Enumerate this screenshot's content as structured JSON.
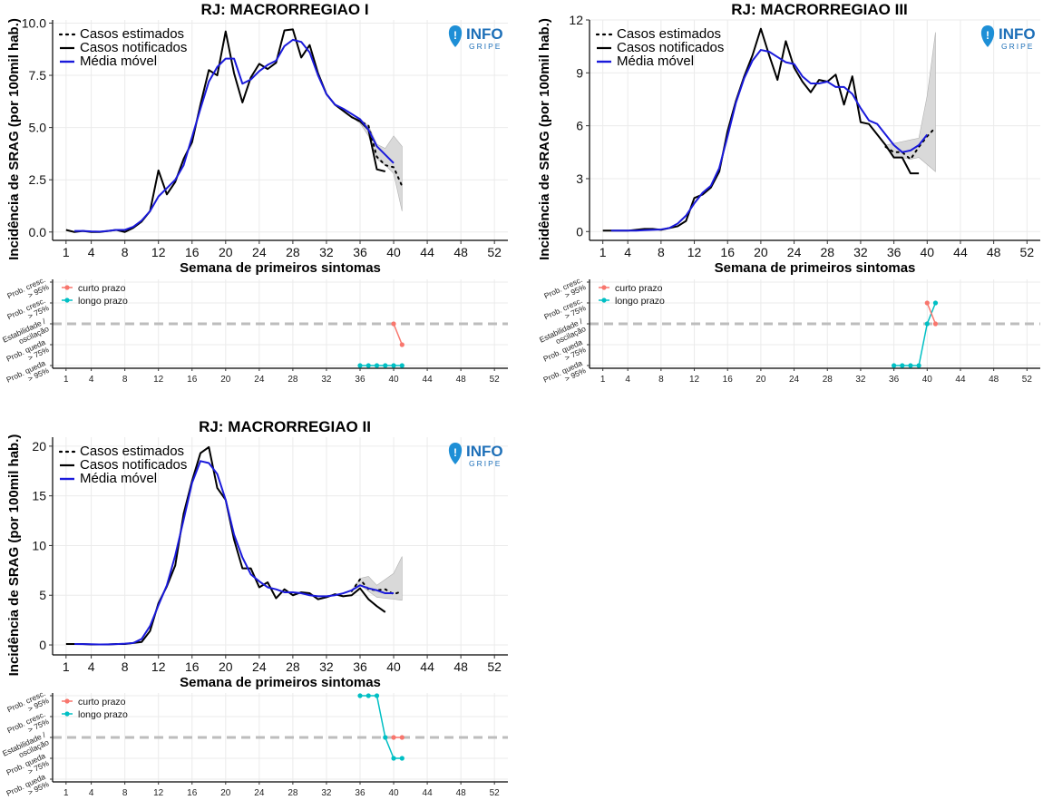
{
  "colors": {
    "notified": "#000000",
    "estimated": "#000000",
    "moving_avg": "#1a1adb",
    "ci_fill": "#d9d9d9",
    "grid": "#ebebeb",
    "short_term": "#f8766d",
    "long_term": "#00bfc4",
    "dashed_ref": "#bdbdbd",
    "brand": "#1d6fb8"
  },
  "logo": {
    "word": "INFO",
    "sub": "GRIPE"
  },
  "chart_data": [
    {
      "type": "line",
      "id": "mr1",
      "title": "RJ: MACRORREGIAO I",
      "xlabel": "Semana de primeiros sintomas",
      "ylabel": "Incidência de SRAG (por 100mil hab.)",
      "xlim": [
        -0.6,
        53.6
      ],
      "ylim": [
        -0.4,
        10.15
      ],
      "xticks": [
        1,
        4,
        8,
        12,
        16,
        20,
        24,
        28,
        32,
        36,
        40,
        44,
        48,
        52
      ],
      "yticks": [
        0,
        2.5,
        5,
        7.5,
        10
      ],
      "ytick_labels": [
        "0.0",
        "2.5",
        "5.0",
        "7.5",
        "10.0"
      ],
      "legend": [
        "Casos estimados",
        "Casos notificados",
        "Média móvel"
      ],
      "notified": {
        "x": [
          1,
          2,
          3,
          4,
          5,
          6,
          7,
          8,
          9,
          10,
          11,
          12,
          13,
          14,
          15,
          16,
          17,
          18,
          19,
          20,
          21,
          22,
          23,
          24,
          25,
          26,
          27,
          28,
          29,
          30,
          31,
          32,
          33,
          34,
          35,
          36,
          37,
          38,
          39
        ],
        "y": [
          0.1,
          0,
          0.05,
          0,
          0,
          0.05,
          0.1,
          0,
          0.2,
          0.5,
          1.0,
          2.95,
          1.8,
          2.4,
          3.5,
          4.3,
          6.1,
          7.75,
          7.5,
          9.6,
          7.6,
          6.2,
          7.4,
          8.05,
          7.8,
          8.1,
          9.65,
          9.7,
          8.35,
          8.95,
          7.6,
          6.6,
          6.1,
          5.8,
          5.5,
          5.3,
          4.9,
          3.0,
          2.9
        ]
      },
      "estimated": {
        "x": [
          35,
          36,
          37,
          38,
          39,
          40,
          41
        ],
        "y": [
          5.5,
          5.3,
          5.1,
          3.6,
          3.2,
          3.1,
          2.2
        ]
      },
      "moving_avg": {
        "x": [
          2,
          3,
          4,
          5,
          6,
          7,
          8,
          9,
          10,
          11,
          12,
          13,
          14,
          15,
          16,
          17,
          18,
          19,
          20,
          21,
          22,
          23,
          24,
          25,
          26,
          27,
          28,
          29,
          30,
          31,
          32,
          33,
          34,
          35,
          36,
          37,
          38,
          39,
          40
        ],
        "y": [
          0.05,
          0.05,
          0.03,
          0.02,
          0.05,
          0.1,
          0.1,
          0.25,
          0.55,
          1.0,
          1.7,
          2.1,
          2.5,
          3.2,
          4.55,
          5.9,
          7.2,
          7.9,
          8.3,
          8.3,
          7.1,
          7.3,
          7.7,
          8.0,
          8.2,
          8.9,
          9.2,
          9.1,
          8.6,
          7.5,
          6.6,
          6.1,
          5.9,
          5.65,
          5.4,
          4.9,
          4.1,
          3.7,
          3.3
        ]
      },
      "ci": {
        "x": [
          35,
          36,
          37,
          38,
          39,
          40,
          41
        ],
        "lo": [
          5.5,
          5.2,
          4.6,
          3.5,
          3.2,
          2.8,
          1.0
        ],
        "hi": [
          5.5,
          5.4,
          5.1,
          4.2,
          4.0,
          4.6,
          4.1
        ]
      },
      "trend": {
        "ylabels": [
          "Prob. cresc.\n> 95%",
          "Prob. cresc.\n> 75%",
          "Estabilidade /\noscilação",
          "Prob. queda\n> 75%",
          "Prob. queda\n> 95%"
        ],
        "legend": [
          "curto prazo",
          "longo prazo"
        ],
        "short": {
          "x": [
            40,
            41
          ],
          "y": [
            0,
            -1
          ]
        },
        "long": {
          "x": [
            36,
            37,
            38,
            39,
            40,
            41
          ],
          "y": [
            -2,
            -2,
            -2,
            -2,
            -2,
            -2
          ]
        }
      }
    },
    {
      "type": "line",
      "id": "mr3",
      "title": "RJ: MACRORREGIAO III",
      "xlabel": "Semana de primeiros sintomas",
      "ylabel": "Incidência de SRAG (por 100mil hab.)",
      "xlim": [
        -0.6,
        53.6
      ],
      "ylim": [
        -0.5,
        12.0
      ],
      "xticks": [
        1,
        4,
        8,
        12,
        16,
        20,
        24,
        28,
        32,
        36,
        40,
        44,
        48,
        52
      ],
      "yticks": [
        0,
        3,
        6,
        9,
        12
      ],
      "ytick_labels": [
        "0",
        "3",
        "6",
        "9",
        "12"
      ],
      "legend": [
        "Casos estimados",
        "Casos notificados",
        "Média móvel"
      ],
      "notified": {
        "x": [
          1,
          2,
          3,
          4,
          5,
          6,
          7,
          8,
          9,
          10,
          11,
          12,
          13,
          14,
          15,
          16,
          17,
          18,
          19,
          20,
          21,
          22,
          23,
          24,
          25,
          26,
          27,
          28,
          29,
          30,
          31,
          32,
          33,
          34,
          35,
          36,
          37,
          38,
          39
        ],
        "y": [
          0.05,
          0.05,
          0.05,
          0.05,
          0.1,
          0.15,
          0.15,
          0.1,
          0.2,
          0.3,
          0.6,
          1.9,
          2.1,
          2.5,
          3.4,
          5.7,
          7.4,
          8.8,
          10.0,
          11.5,
          10.0,
          8.6,
          10.8,
          9.3,
          8.5,
          7.9,
          8.6,
          8.5,
          8.9,
          7.2,
          8.8,
          6.2,
          6.1,
          5.5,
          4.9,
          4.2,
          4.2,
          3.3,
          3.3
        ]
      },
      "estimated": {
        "x": [
          35,
          36,
          37,
          38,
          39,
          40,
          41
        ],
        "y": [
          4.8,
          4.5,
          4.5,
          4.1,
          4.8,
          5.4,
          5.9
        ]
      },
      "moving_avg": {
        "x": [
          2,
          3,
          4,
          5,
          6,
          7,
          8,
          9,
          10,
          11,
          12,
          13,
          14,
          15,
          16,
          17,
          18,
          19,
          20,
          21,
          22,
          23,
          24,
          25,
          26,
          27,
          28,
          29,
          30,
          31,
          32,
          33,
          34,
          35,
          36,
          37,
          38,
          39,
          40
        ],
        "y": [
          0.05,
          0.05,
          0.05,
          0.05,
          0.08,
          0.1,
          0.12,
          0.2,
          0.45,
          0.9,
          1.6,
          2.2,
          2.6,
          3.6,
          5.4,
          7.3,
          8.7,
          9.7,
          10.3,
          10.2,
          9.9,
          9.6,
          9.5,
          8.8,
          8.4,
          8.4,
          8.5,
          8.2,
          8.2,
          7.8,
          7.0,
          6.3,
          6.1,
          5.5,
          4.9,
          4.5,
          4.6,
          4.9,
          5.5
        ]
      },
      "ci": {
        "x": [
          35,
          36,
          37,
          38,
          39,
          40,
          41
        ],
        "lo": [
          4.8,
          4.2,
          4.2,
          4.1,
          4.2,
          3.8,
          3.4
        ],
        "hi": [
          4.9,
          5.0,
          5.1,
          5.2,
          5.3,
          7.7,
          11.3
        ]
      },
      "trend": {
        "ylabels": [
          "Prob. cresc.\n> 95%",
          "Prob. cresc.\n> 75%",
          "Estabilidade /\noscilação",
          "Prob. queda\n> 75%",
          "Prob. queda\n> 95%"
        ],
        "legend": [
          "curto prazo",
          "longo prazo"
        ],
        "short": {
          "x": [
            40,
            41
          ],
          "y": [
            1,
            0
          ]
        },
        "long": {
          "x": [
            36,
            37,
            38,
            39,
            40,
            41
          ],
          "y": [
            -2,
            -2,
            -2,
            -2,
            0,
            1
          ]
        }
      }
    },
    {
      "type": "line",
      "id": "mr2",
      "title": "RJ: MACRORREGIAO II",
      "xlabel": "Semana de primeiros sintomas",
      "ylabel": "Incidência de SRAG (por 100mil hab.)",
      "xlim": [
        -0.6,
        53.6
      ],
      "ylim": [
        -1.0,
        20.9
      ],
      "xticks": [
        1,
        4,
        8,
        12,
        16,
        20,
        24,
        28,
        32,
        36,
        40,
        44,
        48,
        52
      ],
      "yticks": [
        0,
        5,
        10,
        15,
        20
      ],
      "ytick_labels": [
        "0",
        "5",
        "10",
        "15",
        "20"
      ],
      "legend": [
        "Casos estimados",
        "Casos notificados",
        "Média móvel"
      ],
      "notified": {
        "x": [
          1,
          2,
          3,
          4,
          5,
          6,
          7,
          8,
          9,
          10,
          11,
          12,
          13,
          14,
          15,
          16,
          17,
          18,
          19,
          20,
          21,
          22,
          23,
          24,
          25,
          26,
          27,
          28,
          29,
          30,
          31,
          32,
          33,
          34,
          35,
          36,
          37,
          38,
          39
        ],
        "y": [
          0.1,
          0.1,
          0.1,
          0.05,
          0.05,
          0.05,
          0.1,
          0.1,
          0.2,
          0.3,
          1.4,
          4.2,
          5.9,
          8.0,
          13.2,
          16.5,
          19.3,
          19.9,
          15.8,
          14.6,
          10.6,
          7.7,
          7.7,
          5.8,
          6.3,
          4.7,
          5.6,
          5.0,
          5.3,
          5.2,
          4.6,
          4.8,
          5.1,
          4.9,
          5.0,
          5.7,
          4.6,
          3.9,
          3.3
        ]
      },
      "estimated": {
        "x": [
          35,
          36,
          37,
          38,
          39,
          40,
          41
        ],
        "y": [
          5.4,
          6.6,
          5.6,
          5.5,
          5.6,
          5.1,
          5.4
        ]
      },
      "moving_avg": {
        "x": [
          2,
          3,
          4,
          5,
          6,
          7,
          8,
          9,
          10,
          11,
          12,
          13,
          14,
          15,
          16,
          17,
          18,
          19,
          20,
          21,
          22,
          23,
          24,
          25,
          26,
          27,
          28,
          29,
          30,
          31,
          32,
          33,
          34,
          35,
          36,
          37,
          38,
          39,
          40
        ],
        "y": [
          0.1,
          0.08,
          0.07,
          0.05,
          0.06,
          0.08,
          0.13,
          0.2,
          0.6,
          1.9,
          4.0,
          6.0,
          9.0,
          12.6,
          16.3,
          18.5,
          18.3,
          17.2,
          14.6,
          11.1,
          8.8,
          7.1,
          6.4,
          5.8,
          5.6,
          5.3,
          5.3,
          5.2,
          5.0,
          4.9,
          4.9,
          5.0,
          5.2,
          5.5,
          6.0,
          5.7,
          5.5,
          5.2,
          5.2
        ]
      },
      "ci": {
        "x": [
          35,
          36,
          37,
          38,
          39,
          40,
          41
        ],
        "lo": [
          5.4,
          6.0,
          5.4,
          4.8,
          4.7,
          4.6,
          4.5
        ],
        "hi": [
          5.5,
          6.7,
          6.9,
          6.0,
          6.6,
          7.2,
          8.9
        ]
      },
      "trend": {
        "ylabels": [
          "Prob. cresc.\n> 95%",
          "Prob. cresc.\n> 75%",
          "Estabilidade /\noscilação",
          "Prob. queda\n> 75%",
          "Prob. queda\n> 95%"
        ],
        "legend": [
          "curto prazo",
          "longo prazo"
        ],
        "short": {
          "x": [
            40,
            41
          ],
          "y": [
            0,
            0
          ]
        },
        "long": {
          "x": [
            36,
            37,
            38,
            39,
            40,
            41
          ],
          "y": [
            2,
            2,
            2,
            0,
            -1,
            -1
          ]
        }
      }
    }
  ]
}
